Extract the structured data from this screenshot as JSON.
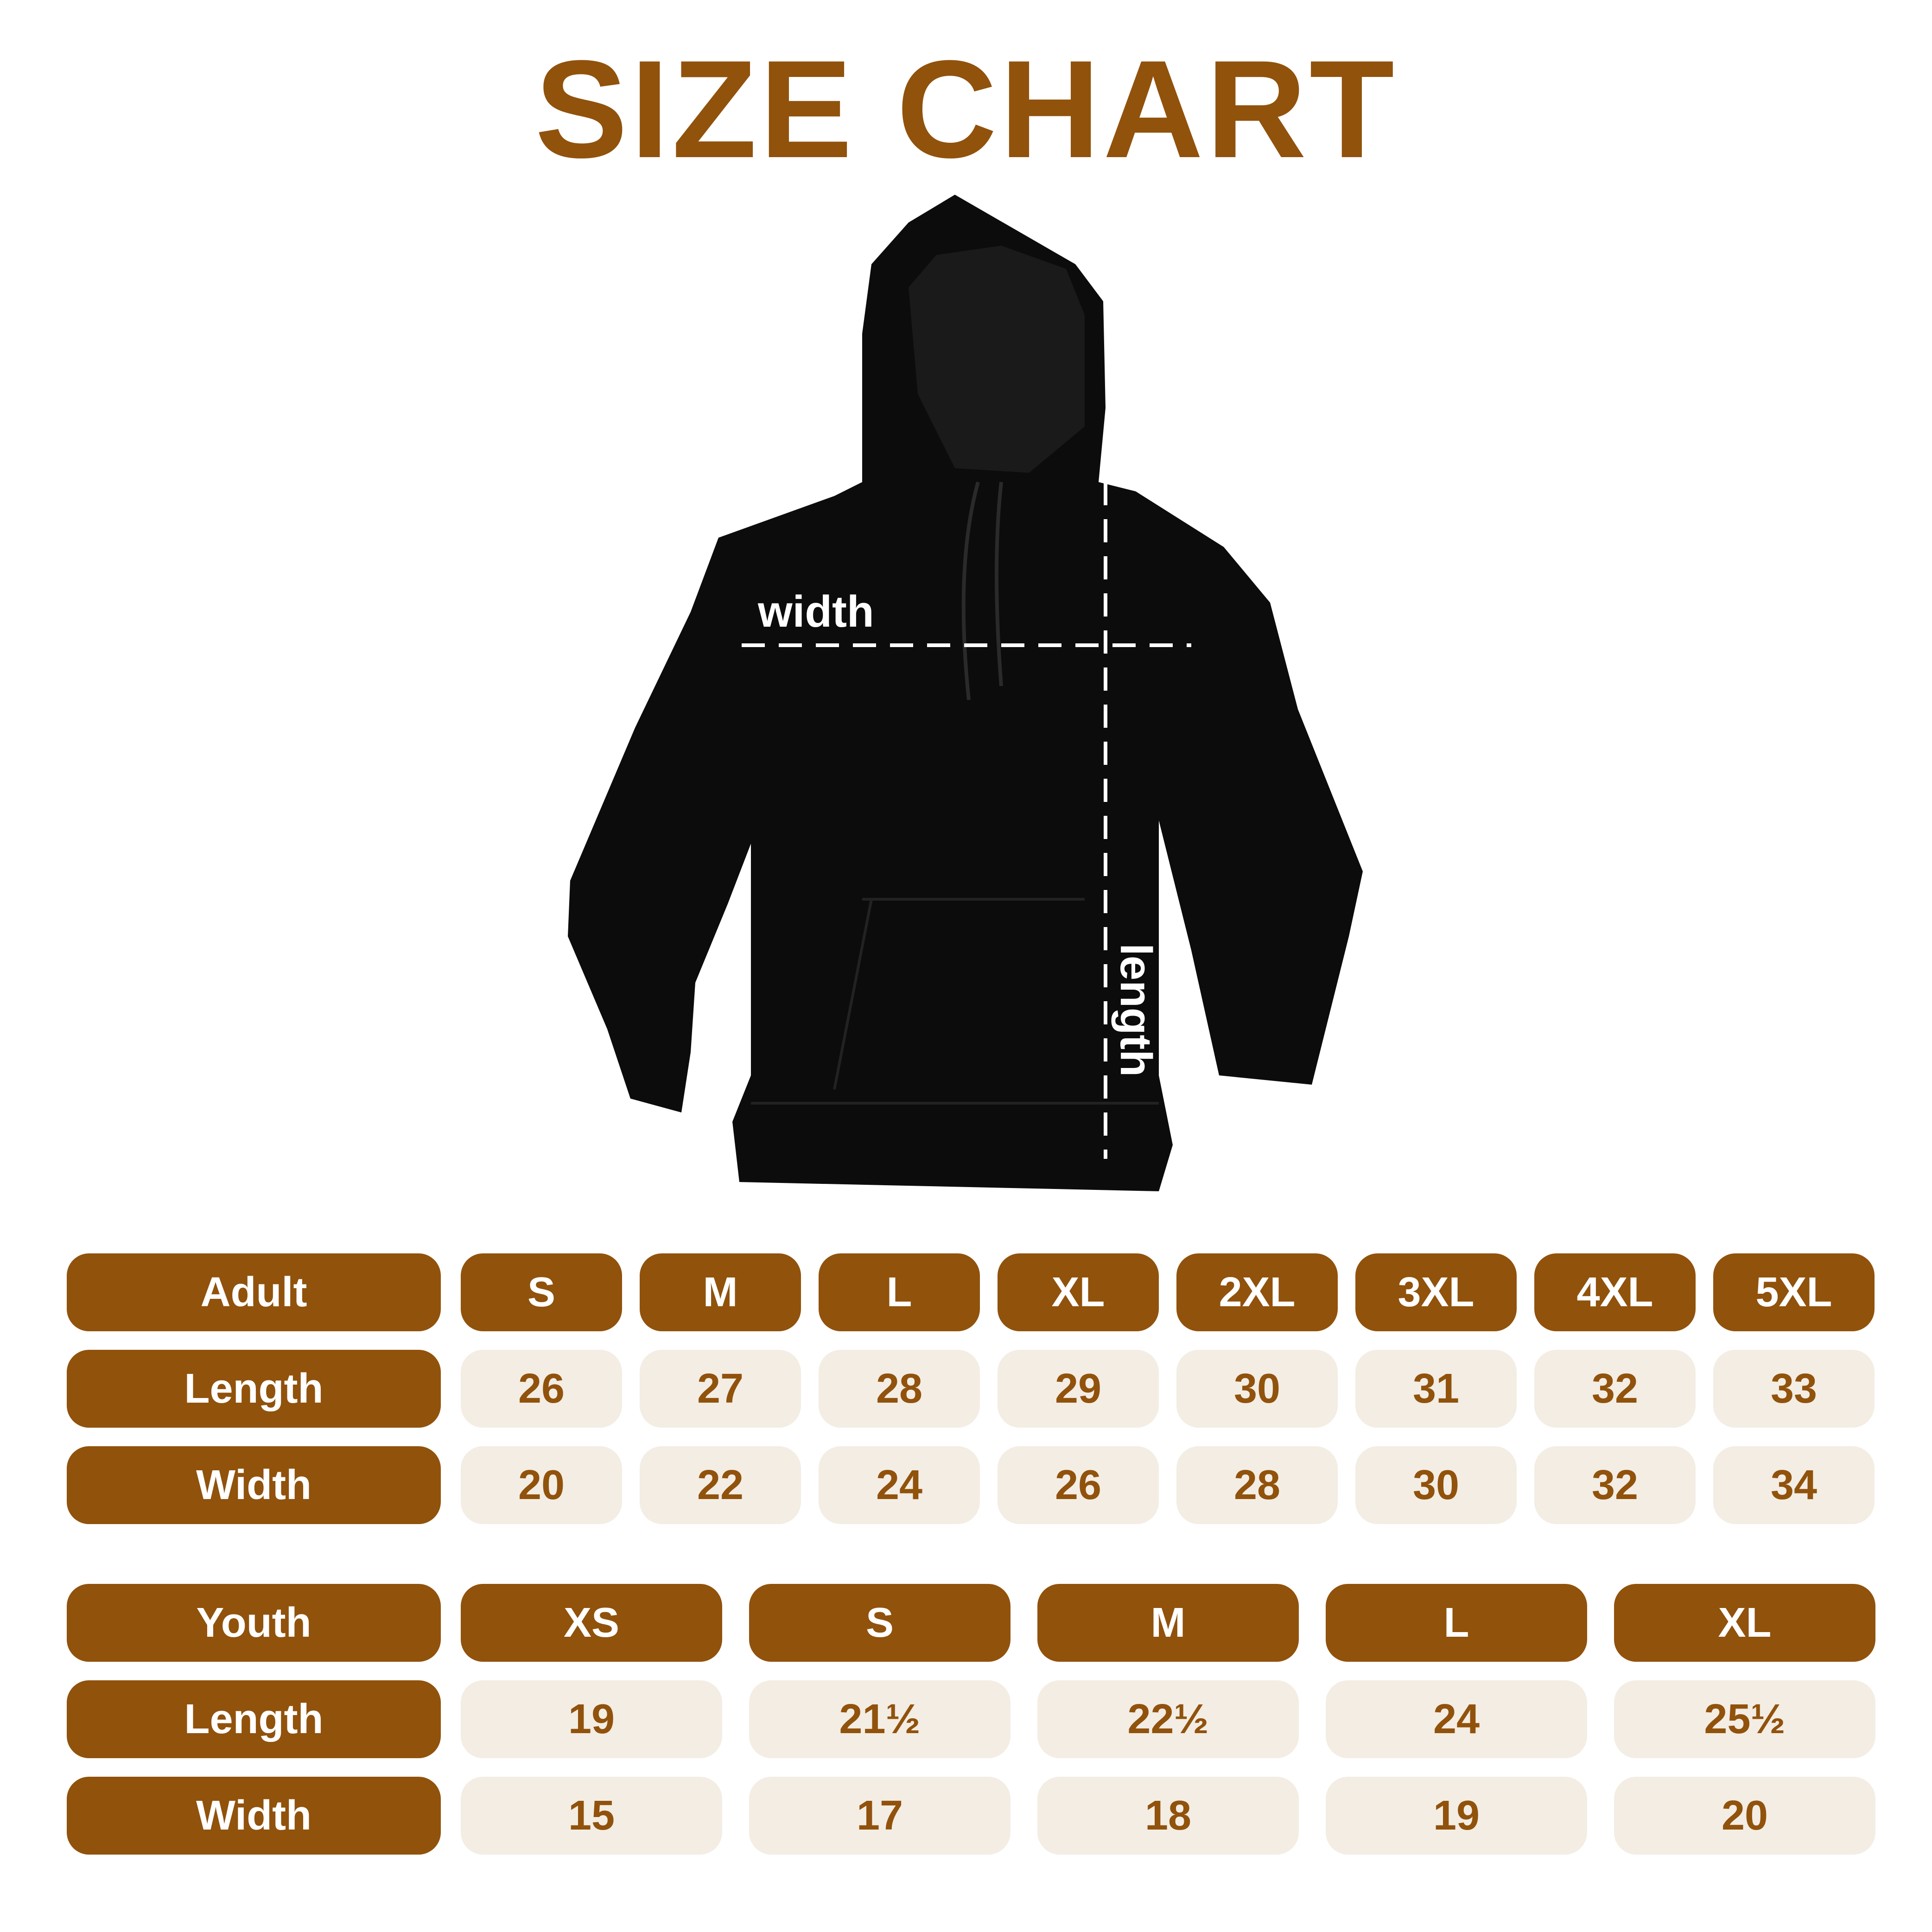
{
  "title": "SIZE CHART",
  "measure_labels": {
    "width": "width",
    "length": "length"
  },
  "colors": {
    "brand": "#91520c",
    "cell_bg": "#f3ede4"
  },
  "adult": {
    "header": "Adult",
    "sizes": [
      "S",
      "M",
      "L",
      "XL",
      "2XL",
      "3XL",
      "4XL",
      "5XL"
    ],
    "rows": [
      {
        "label": "Length",
        "values": [
          "26",
          "27",
          "28",
          "29",
          "30",
          "31",
          "32",
          "33"
        ]
      },
      {
        "label": "Width",
        "values": [
          "20",
          "22",
          "24",
          "26",
          "28",
          "30",
          "32",
          "34"
        ]
      }
    ]
  },
  "youth": {
    "header": "Youth",
    "sizes": [
      "XS",
      "S",
      "M",
      "L",
      "XL"
    ],
    "rows": [
      {
        "label": "Length",
        "values": [
          "19",
          "21½",
          "22½",
          "24",
          "25½"
        ]
      },
      {
        "label": "Width",
        "values": [
          "15",
          "17",
          "18",
          "19",
          "20"
        ]
      }
    ]
  }
}
